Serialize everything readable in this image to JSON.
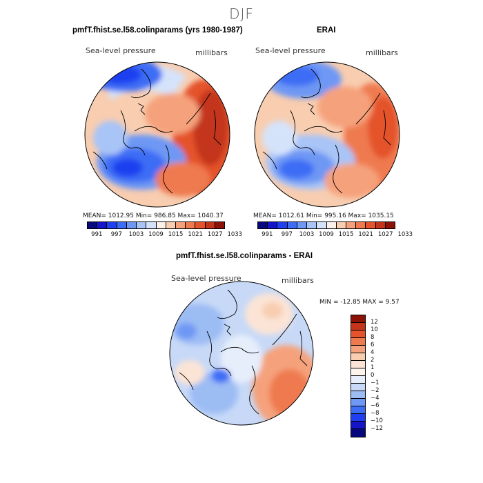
{
  "figure": {
    "season": "DJF",
    "field_label": "Sea-level pressure",
    "units": "millibars"
  },
  "chart_data": [
    {
      "type": "heatmap",
      "projection": "north-polar-stereographic",
      "title": "pmfT.fhist.se.l58.colinparams (yrs 1980-1987)",
      "variable": "Sea-level pressure",
      "units": "millibars",
      "stats_text": "MEAN= 1012.95   Min= 986.85   Max= 1040.37",
      "mean": 1012.95,
      "min": 986.85,
      "max": 1040.37,
      "colorbar": {
        "tick_labels": [
          "991",
          "997",
          "1003",
          "1009",
          "1015",
          "1021",
          "1027",
          "1033"
        ],
        "colors": [
          "#08087e",
          "#1414c8",
          "#1f3ff0",
          "#3d6df5",
          "#6e98f4",
          "#a9c4f7",
          "#d5e3fa",
          "#fbf0ea",
          "#f8cdb0",
          "#f5a27c",
          "#ef7a4f",
          "#e4532c",
          "#c3341a",
          "#8c1208"
        ]
      }
    },
    {
      "type": "heatmap",
      "projection": "north-polar-stereographic",
      "title": "ERAI",
      "variable": "Sea-level pressure",
      "units": "millibars",
      "stats_text": "MEAN= 1012.61   Min= 995.16   Max= 1035.15",
      "mean": 1012.61,
      "min": 995.16,
      "max": 1035.15,
      "colorbar": {
        "tick_labels": [
          "991",
          "997",
          "1003",
          "1009",
          "1015",
          "1021",
          "1027",
          "1033"
        ],
        "colors": [
          "#08087e",
          "#1414c8",
          "#1f3ff0",
          "#3d6df5",
          "#6e98f4",
          "#a9c4f7",
          "#d5e3fa",
          "#fbf0ea",
          "#f8cdb0",
          "#f5a27c",
          "#ef7a4f",
          "#e4532c",
          "#c3341a",
          "#8c1208"
        ]
      }
    },
    {
      "type": "heatmap",
      "projection": "north-polar-stereographic",
      "title": "pmfT.fhist.se.l58.colinparams - ERAI",
      "variable": "Sea-level pressure",
      "units": "millibars",
      "stats_text": "MIN = -12.85 MAX =    9.57",
      "min": -12.85,
      "max": 9.57,
      "colorbar": {
        "tick_labels": [
          "12",
          "10",
          "8",
          "6",
          "4",
          "2",
          "1",
          "0",
          "−1",
          "−2",
          "−4",
          "−6",
          "−8",
          "−10",
          "−12"
        ],
        "colors": [
          "#8c1208",
          "#c3341a",
          "#e4532c",
          "#ef7a4f",
          "#f5a27c",
          "#f8cdb0",
          "#fbe4d6",
          "#fdf4ee",
          "#e6eefb",
          "#c7d9f7",
          "#9cbcf4",
          "#6e98f4",
          "#3d6df5",
          "#1f3ff0",
          "#1414c8",
          "#08087e"
        ]
      }
    }
  ]
}
